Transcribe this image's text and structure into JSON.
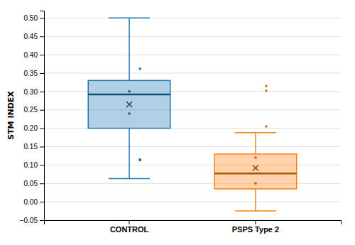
{
  "chart_data": {
    "type": "box",
    "categories": [
      "CONTROL",
      "PSPS Type 2"
    ],
    "ylabel": "STM INDEX",
    "boxes": [
      {
        "whisker_low": 0.063,
        "q1": 0.2,
        "median": 0.292,
        "q3": 0.33,
        "whisker_high": 0.5,
        "mean": 0.265,
        "points": [
          0.3,
          0.24
        ],
        "outliers": [
          0.113,
          0.115,
          0.362
        ]
      },
      {
        "whisker_low": -0.025,
        "q1": 0.035,
        "median": 0.077,
        "q3": 0.13,
        "whisker_high": 0.188,
        "mean": 0.092,
        "points": [
          0.12,
          0.05
        ],
        "outliers": [
          0.315,
          0.302,
          0.205
        ]
      }
    ],
    "ylim": [
      -0.05,
      0.52
    ],
    "yticks": [
      {
        "value": -0.05,
        "label": "−0.05"
      },
      {
        "value": 0.0,
        "label": "0.00"
      },
      0.05,
      {
        "value": 0.1,
        "label": "0.10"
      },
      0.15,
      {
        "value": 0.2,
        "label": "0.20"
      },
      0.25,
      {
        "value": 0.3,
        "label": "0.30"
      },
      0.35,
      {
        "value": 0.4,
        "label": "0.40"
      },
      0.45,
      {
        "value": 0.5,
        "label": "0.50"
      }
    ],
    "grid": true
  }
}
